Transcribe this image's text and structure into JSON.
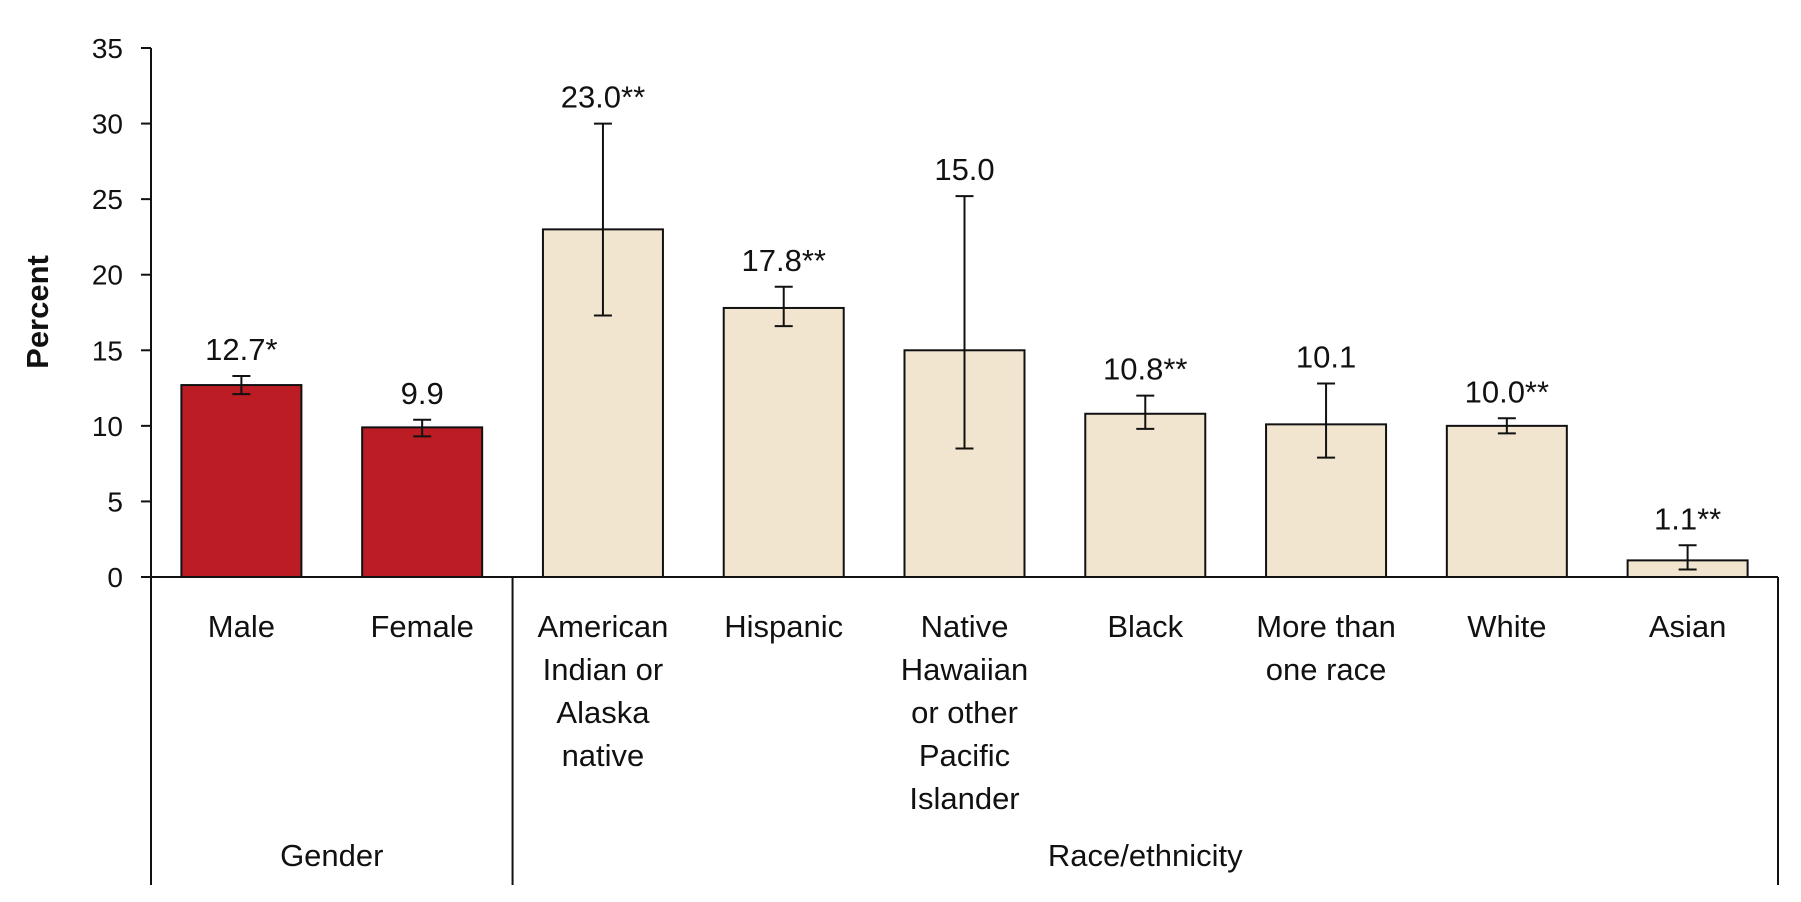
{
  "colors": {
    "gender_bar": "#BC1C24",
    "race_bar": "#F1E5D0",
    "bar_stroke": "#111111",
    "axis": "#111111"
  },
  "chart_data": {
    "type": "bar",
    "ylabel": "Percent",
    "ylim": [
      0,
      35
    ],
    "yticks": [
      0,
      5,
      10,
      15,
      20,
      25,
      30,
      35
    ],
    "groups": [
      {
        "name": "Gender",
        "start": 0,
        "end": 1
      },
      {
        "name": "Race/ethnicity",
        "start": 2,
        "end": 8
      }
    ],
    "bars": [
      {
        "category": "Male",
        "value": 12.7,
        "label": "12.7*",
        "err_low": 12.1,
        "err_high": 13.3,
        "group": "Gender"
      },
      {
        "category": "Female",
        "value": 9.9,
        "label": "9.9",
        "err_low": 9.3,
        "err_high": 10.4,
        "group": "Gender"
      },
      {
        "category": "American Indian or Alaska native",
        "value": 23.0,
        "label": "23.0**",
        "err_low": 17.3,
        "err_high": 30.0,
        "group": "Race/ethnicity"
      },
      {
        "category": "Hispanic",
        "value": 17.8,
        "label": "17.8**",
        "err_low": 16.6,
        "err_high": 19.2,
        "group": "Race/ethnicity"
      },
      {
        "category": "Native Hawaiian or other Pacific Islander",
        "value": 15.0,
        "label": "15.0",
        "err_low": 8.5,
        "err_high": 25.2,
        "group": "Race/ethnicity"
      },
      {
        "category": "Black",
        "value": 10.8,
        "label": "10.8**",
        "err_low": 9.8,
        "err_high": 12.0,
        "group": "Race/ethnicity"
      },
      {
        "category": "More than one race",
        "value": 10.1,
        "label": "10.1",
        "err_low": 7.9,
        "err_high": 12.8,
        "group": "Race/ethnicity"
      },
      {
        "category": "White",
        "value": 10.0,
        "label": "10.0**",
        "err_low": 9.5,
        "err_high": 10.5,
        "group": "Race/ethnicity"
      },
      {
        "category": "Asian",
        "value": 1.1,
        "label": "1.1**",
        "err_low": 0.5,
        "err_high": 2.1,
        "group": "Race/ethnicity"
      }
    ]
  }
}
